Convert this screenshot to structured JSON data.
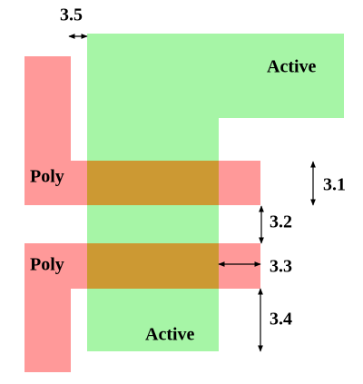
{
  "shapes": {
    "active_top": "Active",
    "active_bottom": "Active",
    "poly_top": "Poly",
    "poly_bottom": "Poly"
  },
  "rules": [
    "3.1",
    "3.2",
    "3.3",
    "3.4",
    "3.5"
  ]
}
